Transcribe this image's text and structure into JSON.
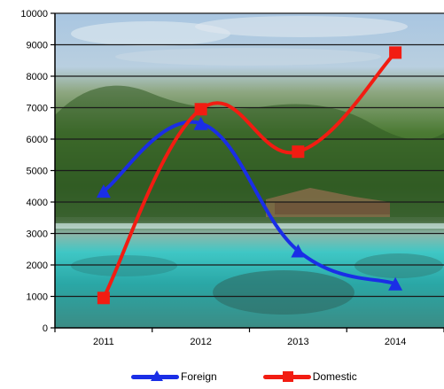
{
  "chart_data": {
    "type": "line",
    "categories": [
      "2011",
      "2012",
      "2013",
      "2014"
    ],
    "series": [
      {
        "name": "Foreign",
        "values": [
          4350,
          6500,
          2450,
          1400
        ],
        "color": "#1a2ee6",
        "marker": "triangle"
      },
      {
        "name": "Domestic",
        "values": [
          950,
          6950,
          5600,
          8750
        ],
        "color": "#f21c12",
        "marker": "square"
      }
    ],
    "y_ticks": [
      "0",
      "1000",
      "2000",
      "3000",
      "4000",
      "5000",
      "6000",
      "7000",
      "8000",
      "9000",
      "10000"
    ],
    "ylim": [
      0,
      10000
    ],
    "smooth": true,
    "grid": true,
    "background": "tropical beach photo",
    "legend_position": "bottom",
    "legend": {
      "foreign": "Foreign",
      "domestic": "Domestic"
    }
  }
}
